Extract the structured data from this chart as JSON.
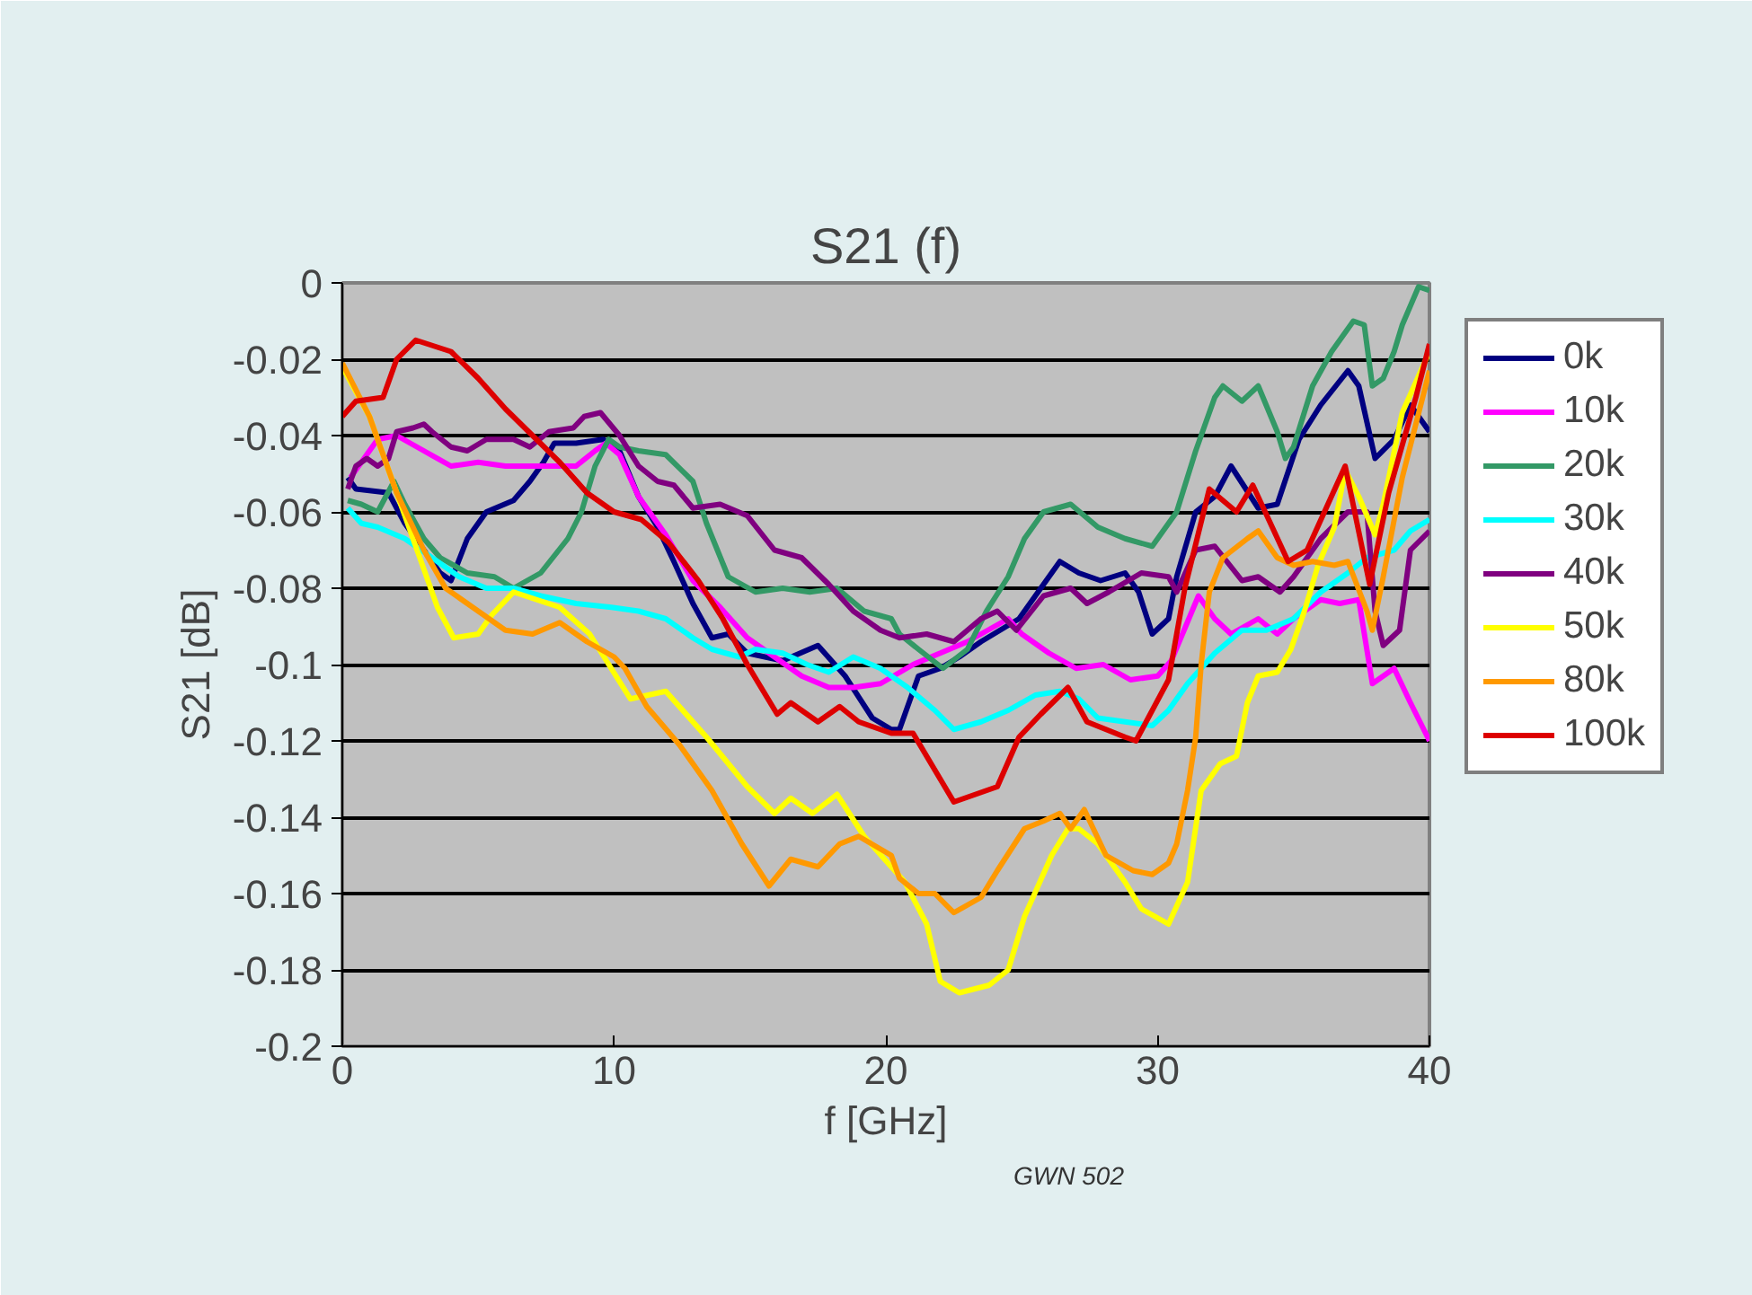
{
  "chart_data": {
    "type": "line",
    "title": "S21 (f)",
    "xlabel": "f [GHz]",
    "ylabel": "S21 [dB]",
    "xlim": [
      0,
      40
    ],
    "xticks": [
      0,
      10,
      20,
      30,
      40
    ],
    "ylim": [
      -0.2,
      0
    ],
    "yticks": [
      -0.2,
      -0.18,
      -0.16,
      -0.14,
      -0.12,
      -0.1,
      -0.08,
      -0.06,
      -0.04,
      -0.02,
      0
    ],
    "grid": "y",
    "legend": "right",
    "marker": "none",
    "line_style": "solid",
    "annotations": [
      "GWN 502"
    ],
    "series": [
      {
        "name": "0k",
        "color": "#000080",
        "x": [
          0.2,
          0.5,
          1.7,
          2.3,
          3,
          3.6,
          4,
          4.6,
          5.3,
          6.3,
          6.9,
          7.4,
          7.8,
          8.6,
          9.6,
          10.2,
          10.9,
          11.6,
          12.2,
          12.9,
          13.6,
          14.2,
          14.9,
          16.2,
          17.5,
          18.5,
          19.5,
          20.2,
          20.5,
          21.2,
          22,
          22.7,
          23.5,
          24.9,
          25.8,
          26.4,
          27.1,
          27.9,
          28.8,
          29.3,
          29.8,
          30.4,
          30.7,
          31.4,
          32.1,
          32.7,
          33.7,
          34.4,
          35.2,
          36,
          37,
          37.4,
          38,
          38.7,
          39.3,
          40
        ],
        "values": [
          -0.051,
          -0.054,
          -0.055,
          -0.063,
          -0.07,
          -0.076,
          -0.078,
          -0.067,
          -0.06,
          -0.057,
          -0.052,
          -0.047,
          -0.042,
          -0.042,
          -0.041,
          -0.044,
          -0.056,
          -0.064,
          -0.073,
          -0.084,
          -0.093,
          -0.092,
          -0.097,
          -0.099,
          -0.095,
          -0.103,
          -0.114,
          -0.117,
          -0.117,
          -0.103,
          -0.101,
          -0.098,
          -0.094,
          -0.088,
          -0.079,
          -0.073,
          -0.076,
          -0.078,
          -0.076,
          -0.081,
          -0.092,
          -0.088,
          -0.077,
          -0.06,
          -0.056,
          -0.048,
          -0.059,
          -0.058,
          -0.041,
          -0.032,
          -0.023,
          -0.027,
          -0.046,
          -0.041,
          -0.032,
          -0.039
        ]
      },
      {
        "name": "10k",
        "color": "#ff00ff",
        "x": [
          0.3,
          0.7,
          1.3,
          2,
          3,
          4,
          5,
          6,
          6.9,
          7.9,
          8.6,
          9.3,
          9.7,
          10.2,
          10.9,
          11.9,
          12.9,
          13.9,
          14.9,
          15.9,
          16.9,
          17.9,
          18.8,
          19.8,
          21,
          22,
          23,
          24,
          24.5,
          25,
          26,
          27,
          28,
          29,
          30,
          30.5,
          31.5,
          32.1,
          32.7,
          33.7,
          34.4,
          35,
          36,
          36.7,
          37.4,
          37.9,
          38.7,
          39.3,
          40
        ],
        "values": [
          -0.051,
          -0.047,
          -0.041,
          -0.04,
          -0.044,
          -0.048,
          -0.047,
          -0.048,
          -0.048,
          -0.048,
          -0.048,
          -0.044,
          -0.042,
          -0.045,
          -0.056,
          -0.066,
          -0.078,
          -0.085,
          -0.093,
          -0.098,
          -0.103,
          -0.106,
          -0.106,
          -0.105,
          -0.1,
          -0.097,
          -0.094,
          -0.09,
          -0.088,
          -0.092,
          -0.097,
          -0.101,
          -0.1,
          -0.104,
          -0.103,
          -0.099,
          -0.082,
          -0.088,
          -0.092,
          -0.088,
          -0.092,
          -0.088,
          -0.083,
          -0.084,
          -0.083,
          -0.105,
          -0.101,
          -0.11,
          -0.12
        ]
      },
      {
        "name": "20k",
        "color": "#339966",
        "x": [
          0.2,
          0.7,
          1.3,
          1.9,
          2.3,
          3,
          3.6,
          4.6,
          5.6,
          6.3,
          7.3,
          8.3,
          8.8,
          9.3,
          9.8,
          10.2,
          10.9,
          11.9,
          12.9,
          13.4,
          14.2,
          15.2,
          16.2,
          17.2,
          18.2,
          19.2,
          20.2,
          20.5,
          21.2,
          22.1,
          23,
          23.7,
          24.5,
          25.1,
          25.8,
          26.8,
          27.8,
          28.8,
          29.8,
          30.7,
          31.4,
          32.1,
          32.4,
          33.1,
          33.7,
          34.4,
          34.7,
          35,
          35.7,
          36.4,
          37.2,
          37.6,
          37.9,
          38.3,
          38.7,
          39,
          39.6,
          40
        ],
        "values": [
          -0.057,
          -0.058,
          -0.06,
          -0.052,
          -0.058,
          -0.067,
          -0.072,
          -0.076,
          -0.077,
          -0.08,
          -0.076,
          -0.067,
          -0.06,
          -0.048,
          -0.041,
          -0.043,
          -0.044,
          -0.045,
          -0.052,
          -0.063,
          -0.077,
          -0.081,
          -0.08,
          -0.081,
          -0.08,
          -0.086,
          -0.088,
          -0.092,
          -0.096,
          -0.101,
          -0.096,
          -0.086,
          -0.077,
          -0.067,
          -0.06,
          -0.058,
          -0.064,
          -0.067,
          -0.069,
          -0.06,
          -0.044,
          -0.03,
          -0.027,
          -0.031,
          -0.027,
          -0.039,
          -0.046,
          -0.043,
          -0.027,
          -0.018,
          -0.01,
          -0.011,
          -0.027,
          -0.025,
          -0.018,
          -0.011,
          -0.001,
          -0.002
        ]
      },
      {
        "name": "30k",
        "color": "#00ffff",
        "x": [
          0.2,
          0.7,
          1.3,
          2.3,
          3.3,
          4.3,
          5.3,
          6.3,
          7.3,
          8.6,
          9.9,
          10.9,
          11.9,
          12.9,
          13.6,
          14.6,
          15.2,
          16.2,
          17.1,
          17.9,
          18.8,
          19.8,
          20.8,
          21.8,
          22.5,
          23.5,
          24.5,
          25.5,
          26.4,
          27.1,
          27.8,
          28.8,
          29.8,
          30.4,
          31.1,
          32.1,
          33.1,
          34,
          35,
          36,
          37,
          37.7,
          38.7,
          39.3,
          40
        ],
        "values": [
          -0.059,
          -0.063,
          -0.064,
          -0.067,
          -0.072,
          -0.077,
          -0.08,
          -0.08,
          -0.082,
          -0.084,
          -0.085,
          -0.086,
          -0.088,
          -0.093,
          -0.096,
          -0.098,
          -0.096,
          -0.097,
          -0.1,
          -0.102,
          -0.098,
          -0.101,
          -0.106,
          -0.112,
          -0.117,
          -0.115,
          -0.112,
          -0.108,
          -0.107,
          -0.109,
          -0.114,
          -0.115,
          -0.116,
          -0.112,
          -0.105,
          -0.097,
          -0.091,
          -0.091,
          -0.088,
          -0.081,
          -0.076,
          -0.072,
          -0.07,
          -0.065,
          -0.062
        ]
      },
      {
        "name": "40k",
        "color": "#800080",
        "x": [
          0.2,
          0.5,
          0.9,
          1.3,
          1.7,
          2,
          2.6,
          3,
          3.3,
          4,
          4.6,
          5.3,
          6.3,
          6.9,
          7.6,
          8.5,
          8.9,
          9.5,
          10.2,
          10.9,
          11.6,
          12.2,
          12.9,
          13.9,
          14.9,
          15.9,
          16.9,
          17.9,
          18.8,
          19.8,
          20.5,
          21.5,
          22.5,
          23.5,
          24.1,
          24.8,
          25.8,
          26.8,
          27.4,
          28.2,
          29.4,
          30.4,
          30.7,
          31.4,
          32.1,
          33.1,
          33.7,
          34.5,
          35,
          36,
          37,
          37.7,
          38,
          38.3,
          38.9,
          39.3,
          40
        ],
        "values": [
          -0.054,
          -0.048,
          -0.046,
          -0.048,
          -0.046,
          -0.039,
          -0.038,
          -0.037,
          -0.039,
          -0.043,
          -0.044,
          -0.041,
          -0.041,
          -0.043,
          -0.039,
          -0.038,
          -0.035,
          -0.034,
          -0.04,
          -0.048,
          -0.052,
          -0.053,
          -0.059,
          -0.058,
          -0.061,
          -0.07,
          -0.072,
          -0.079,
          -0.086,
          -0.091,
          -0.093,
          -0.092,
          -0.094,
          -0.088,
          -0.086,
          -0.091,
          -0.082,
          -0.08,
          -0.084,
          -0.081,
          -0.076,
          -0.077,
          -0.081,
          -0.07,
          -0.069,
          -0.078,
          -0.077,
          -0.081,
          -0.077,
          -0.067,
          -0.06,
          -0.06,
          -0.086,
          -0.095,
          -0.091,
          -0.07,
          -0.065
        ]
      },
      {
        "name": "50k",
        "color": "#ffff00",
        "x": [
          0,
          1,
          2,
          3,
          3.5,
          4.1,
          5,
          5.5,
          6.3,
          8,
          9.1,
          10.6,
          11.9,
          13.4,
          14.9,
          15.9,
          16.5,
          17.3,
          18.2,
          19.2,
          20.2,
          20.7,
          21.5,
          22,
          22.7,
          23.8,
          24.5,
          25.1,
          26.1,
          26.7,
          27.1,
          27.8,
          28.8,
          29.4,
          30.4,
          31.1,
          31.6,
          32.3,
          32.9,
          33.3,
          33.7,
          34.4,
          34.9,
          35.4,
          35.9,
          36.5,
          36.9,
          37.4,
          38,
          38.3,
          39,
          40
        ],
        "values": [
          -0.022,
          -0.035,
          -0.055,
          -0.075,
          -0.085,
          -0.093,
          -0.092,
          -0.087,
          -0.081,
          -0.085,
          -0.092,
          -0.109,
          -0.107,
          -0.119,
          -0.132,
          -0.139,
          -0.135,
          -0.139,
          -0.134,
          -0.145,
          -0.153,
          -0.157,
          -0.168,
          -0.183,
          -0.186,
          -0.184,
          -0.18,
          -0.166,
          -0.15,
          -0.143,
          -0.143,
          -0.147,
          -0.157,
          -0.164,
          -0.168,
          -0.157,
          -0.133,
          -0.126,
          -0.124,
          -0.11,
          -0.103,
          -0.102,
          -0.096,
          -0.086,
          -0.074,
          -0.064,
          -0.049,
          -0.056,
          -0.066,
          -0.058,
          -0.034,
          -0.018
        ]
      },
      {
        "name": "80k",
        "color": "#ff9900",
        "x": [
          0,
          1,
          2,
          3,
          3.8,
          5,
          6,
          7,
          8,
          9,
          10,
          10.4,
          11.2,
          12.4,
          13.6,
          14.7,
          15.7,
          16.5,
          17.5,
          18.3,
          19,
          20.2,
          20.5,
          21.2,
          21.8,
          22.5,
          23.5,
          24.1,
          25.1,
          25.8,
          26.4,
          26.8,
          27.3,
          28.1,
          29.1,
          29.8,
          30.4,
          30.7,
          31.1,
          31.4,
          31.6,
          31.9,
          32.4,
          33.3,
          33.7,
          34.4,
          35,
          35.7,
          36.5,
          37,
          37.7,
          37.9,
          38.3,
          39,
          40
        ],
        "values": [
          -0.021,
          -0.035,
          -0.055,
          -0.07,
          -0.08,
          -0.086,
          -0.091,
          -0.092,
          -0.089,
          -0.094,
          -0.098,
          -0.101,
          -0.111,
          -0.121,
          -0.133,
          -0.147,
          -0.158,
          -0.151,
          -0.153,
          -0.147,
          -0.145,
          -0.15,
          -0.156,
          -0.16,
          -0.16,
          -0.165,
          -0.161,
          -0.154,
          -0.143,
          -0.141,
          -0.139,
          -0.143,
          -0.138,
          -0.15,
          -0.154,
          -0.155,
          -0.152,
          -0.147,
          -0.133,
          -0.119,
          -0.1,
          -0.081,
          -0.072,
          -0.067,
          -0.065,
          -0.072,
          -0.074,
          -0.073,
          -0.074,
          -0.073,
          -0.086,
          -0.091,
          -0.077,
          -0.051,
          -0.023
        ]
      },
      {
        "name": "100k",
        "color": "#dd0000",
        "x": [
          0,
          0.5,
          1.5,
          2,
          2.7,
          4,
          5,
          6,
          7,
          8,
          9,
          10,
          11,
          12,
          13.1,
          14,
          14.9,
          16,
          16.5,
          17.5,
          18.3,
          19,
          20.2,
          21,
          22,
          22.5,
          24.1,
          24.9,
          25.7,
          26.7,
          27.4,
          28.8,
          29.2,
          30.4,
          31,
          31.9,
          32.9,
          33.5,
          34.8,
          35.5,
          36.9,
          37.8,
          38.5,
          39.5,
          40
        ],
        "values": [
          -0.035,
          -0.031,
          -0.03,
          -0.02,
          -0.015,
          -0.018,
          -0.025,
          -0.033,
          -0.04,
          -0.047,
          -0.055,
          -0.06,
          -0.062,
          -0.068,
          -0.078,
          -0.088,
          -0.1,
          -0.113,
          -0.11,
          -0.115,
          -0.111,
          -0.115,
          -0.118,
          -0.118,
          -0.13,
          -0.136,
          -0.132,
          -0.119,
          -0.113,
          -0.106,
          -0.115,
          -0.119,
          -0.12,
          -0.104,
          -0.08,
          -0.054,
          -0.06,
          -0.053,
          -0.073,
          -0.07,
          -0.048,
          -0.079,
          -0.055,
          -0.03,
          -0.016
        ]
      }
    ]
  }
}
